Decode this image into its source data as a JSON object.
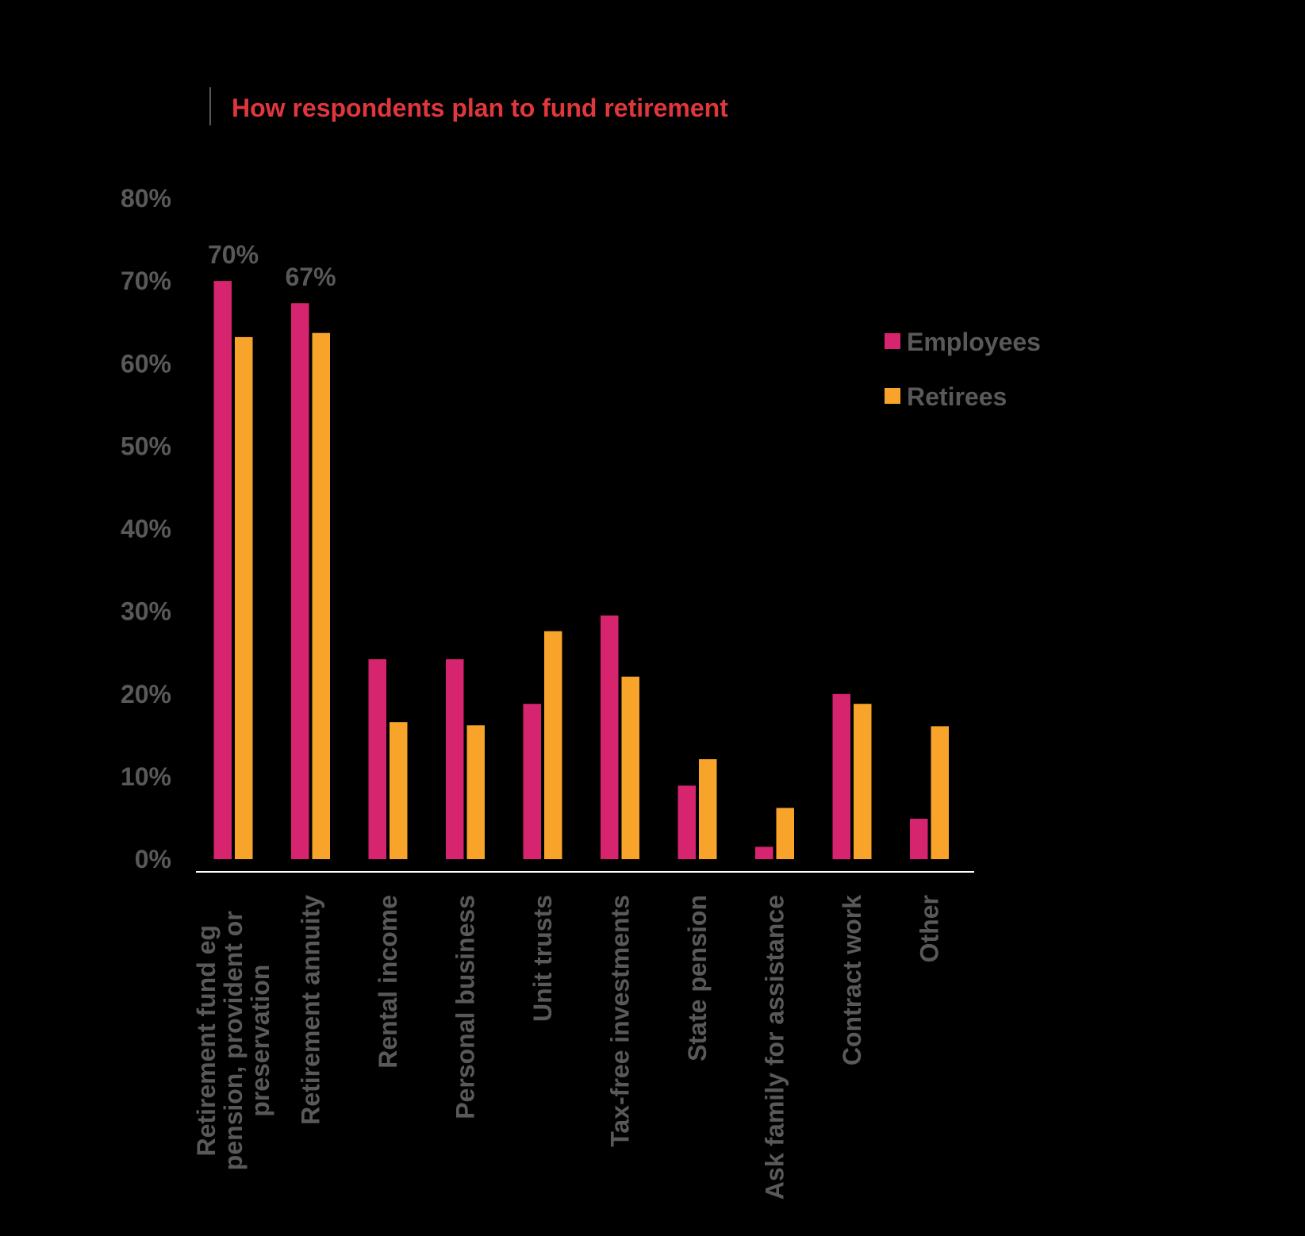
{
  "chart_data": {
    "type": "bar",
    "title": "How respondents plan to fund retirement",
    "xlabel": "",
    "ylabel": "",
    "ylim": [
      0,
      80
    ],
    "yticks": [
      0,
      10,
      20,
      30,
      40,
      50,
      60,
      70,
      80
    ],
    "ytick_labels": [
      "0%",
      "10%",
      "20%",
      "30%",
      "40%",
      "50%",
      "60%",
      "70%",
      "80%"
    ],
    "grid": false,
    "legend_position": "right",
    "categories": [
      [
        "Retirement fund eg",
        "pension, provident or",
        "preservation"
      ],
      [
        "Retirement annuity"
      ],
      [
        "Rental income"
      ],
      [
        "Personal business"
      ],
      [
        "Unit trusts"
      ],
      [
        "Tax-free investments"
      ],
      [
        "State pension"
      ],
      [
        "Ask family for assistance"
      ],
      [
        "Contract work"
      ],
      [
        "Other"
      ]
    ],
    "series": [
      {
        "name": "Employees",
        "color": "#D6246E",
        "values": [
          70,
          67.3,
          24.2,
          24.2,
          18.8,
          29.5,
          8.9,
          1.5,
          20,
          4.9
        ]
      },
      {
        "name": "Retirees",
        "color": "#F8A42B",
        "values": [
          63.2,
          63.7,
          16.6,
          16.2,
          27.6,
          22.1,
          12.1,
          6.2,
          18.8,
          16.1
        ]
      }
    ],
    "annotations": [
      {
        "category_index": 0,
        "series": "Employees",
        "text": "70%"
      },
      {
        "category_index": 1,
        "series": "Employees",
        "text": "67%"
      }
    ]
  },
  "colors": {
    "background": "#000000",
    "title": "#E0373C",
    "axis_text": "#595959",
    "axis_line": "#FFFFFF",
    "title_rule": "#595959"
  }
}
